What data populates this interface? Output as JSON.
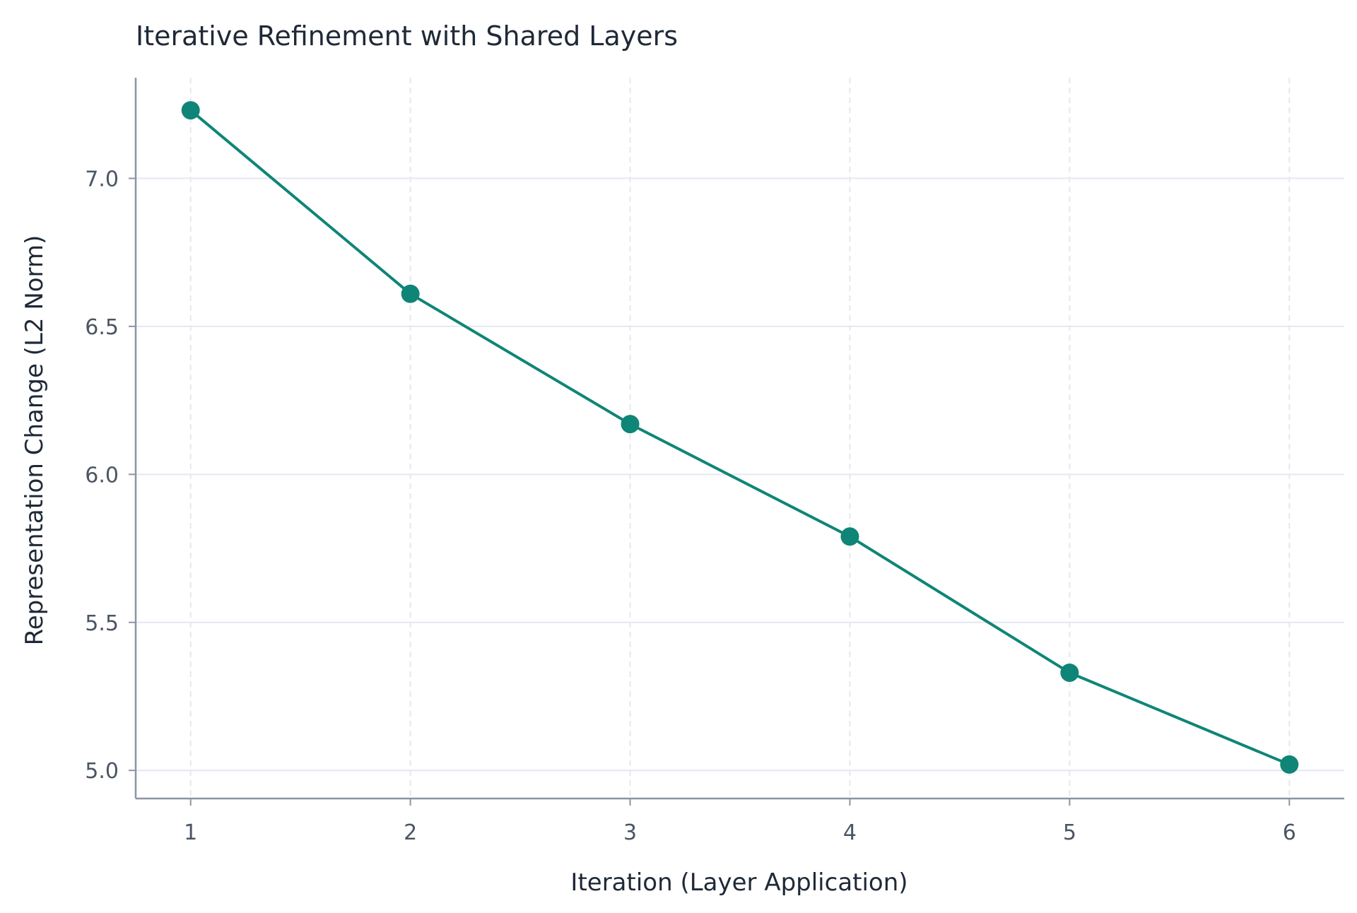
{
  "chart_data": {
    "type": "line",
    "title": "Iterative Refinement with Shared Layers",
    "xlabel": "Iteration (Layer Application)",
    "ylabel": "Representation Change (L2 Norm)",
    "x": [
      1,
      2,
      3,
      4,
      5,
      6
    ],
    "xticks": [
      "1",
      "2",
      "3",
      "4",
      "5",
      "6"
    ],
    "yticks": [
      "5.0",
      "5.5",
      "6.0",
      "6.5",
      "7.0"
    ],
    "xlim": [
      0.75,
      6.25
    ],
    "ylim": [
      4.905,
      7.34
    ],
    "series": [
      {
        "values": [
          7.23,
          6.61,
          6.17,
          5.79,
          5.33,
          5.02
        ],
        "color": "#0f8577"
      }
    ],
    "grid": true,
    "colors": {
      "grid_horizontal": "#e4e8f0",
      "grid_vertical": "#e6e8ec",
      "axis": "#8a95a5",
      "line": "#0f8577"
    }
  }
}
